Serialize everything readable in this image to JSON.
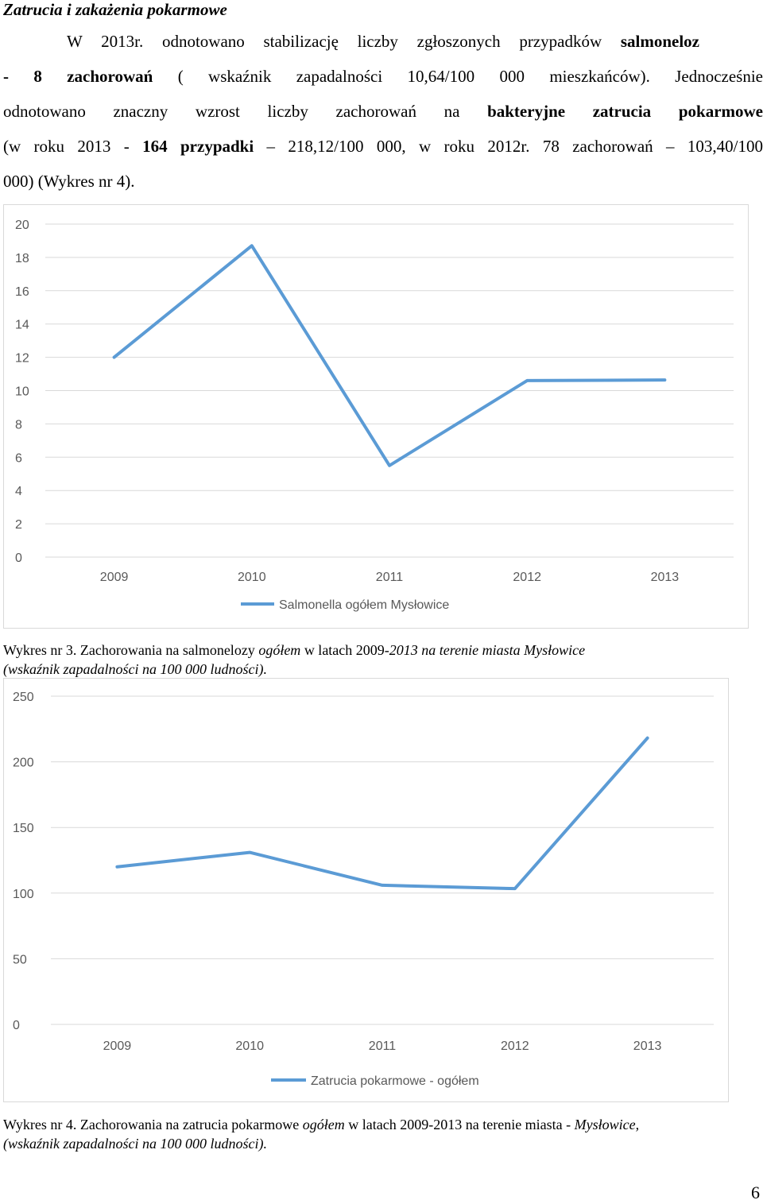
{
  "heading": "Zatrucia i zakażenia pokarmowe",
  "paragraph": {
    "line1": [
      "W 2013r. odnotowano stabilizację liczby zgłoszonych przypadków ",
      "salmoneloz"
    ],
    "line2": [
      "- 8 zachorowań",
      " ( wskaźnik zapadalności 10,64/100 000 mieszkańców). Jednocześnie"
    ],
    "line3": [
      "odnotowano znaczny wzrost liczby zachorowań na ",
      "bakteryjne zatrucia pokarmowe"
    ],
    "line4": [
      "(w roku 2013 - ",
      "164 przypadki",
      " – 218,12/100 000, w roku 2012r. 78 zachorowań – 103,40/100"
    ],
    "line5": "000) (Wykres nr 4)."
  },
  "chart_data": [
    {
      "type": "line",
      "x": [
        "2009",
        "2010",
        "2011",
        "2012",
        "2013"
      ],
      "series": [
        {
          "name": "Salmonella ogółem Mysłowice",
          "values": [
            12,
            18.7,
            5.5,
            10.6,
            10.64
          ]
        }
      ],
      "yticks": [
        "0",
        "2",
        "4",
        "6",
        "8",
        "10",
        "12",
        "14",
        "16",
        "18",
        "20"
      ],
      "ylim": [
        0,
        20
      ],
      "grid": true,
      "legend": "bottom",
      "color": "#5b9bd5"
    },
    {
      "type": "line",
      "x": [
        "2009",
        "2010",
        "2011",
        "2012",
        "2013"
      ],
      "series": [
        {
          "name": "Zatrucia pokarmowe - ogółem",
          "values": [
            120,
            131,
            106,
            103.4,
            218.12
          ]
        }
      ],
      "yticks": [
        "0",
        "50",
        "100",
        "150",
        "200",
        "250"
      ],
      "ylim": [
        0,
        250
      ],
      "grid": true,
      "legend": "bottom",
      "color": "#5b9bd5"
    }
  ],
  "caption1": {
    "a": "Wykres nr 3. Zachorowania na salmonelozy ",
    "b": "ogółem",
    "c": " w latach 2009-",
    "d": "2013 na terenie miasta Mysłowice",
    "e": "(wskaźnik zapadalności na 100 000 ludności)."
  },
  "caption2": {
    "a": "Wykres nr 4. Zachorowania na zatrucia pokarmowe ",
    "b": "ogółem",
    "c": " w latach 2009-2013 na terenie miasta - ",
    "d": "Mysłowice,",
    "e": "(wskaźnik zapadalności na 100 000 ludności)."
  },
  "page_number": "6"
}
